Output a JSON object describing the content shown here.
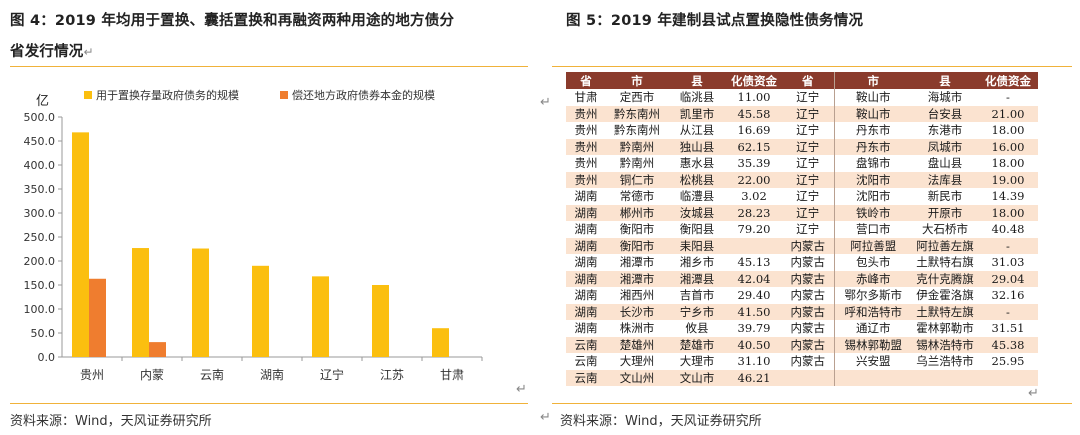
{
  "left": {
    "title_line1": "图 4：2019 年均用于置换、囊括置换和再融资两种用途的地方债分",
    "title_line2": "省发行情况",
    "pilcrow": "↵",
    "source": "资料来源：Wind，天风证券研究所",
    "end_mark": "↵"
  },
  "right": {
    "title": "图 5：2019 年建制县试点置换隐性债务情况",
    "source": "资料来源：Wind，天风证券研究所",
    "table": {
      "headers": [
        "省",
        "市",
        "县",
        "化债资金",
        "省",
        "市",
        "县",
        "化债资金"
      ],
      "rows": [
        [
          "甘肃",
          "定西市",
          "临洮县",
          "11.00",
          "辽宁",
          "鞍山市",
          "海城市",
          "-"
        ],
        [
          "贵州",
          "黔东南州",
          "凯里市",
          "45.58",
          "辽宁",
          "鞍山市",
          "台安县",
          "21.00"
        ],
        [
          "贵州",
          "黔东南州",
          "从江县",
          "16.69",
          "辽宁",
          "丹东市",
          "东港市",
          "18.00"
        ],
        [
          "贵州",
          "黔南州",
          "独山县",
          "62.15",
          "辽宁",
          "丹东市",
          "凤城市",
          "16.00"
        ],
        [
          "贵州",
          "黔南州",
          "惠水县",
          "35.39",
          "辽宁",
          "盘锦市",
          "盘山县",
          "18.00"
        ],
        [
          "贵州",
          "铜仁市",
          "松桃县",
          "22.00",
          "辽宁",
          "沈阳市",
          "法库县",
          "19.00"
        ],
        [
          "湖南",
          "常德市",
          "临澧县",
          "3.02",
          "辽宁",
          "沈阳市",
          "新民市",
          "14.39"
        ],
        [
          "湖南",
          "郴州市",
          "汝城县",
          "28.23",
          "辽宁",
          "铁岭市",
          "开原市",
          "18.00"
        ],
        [
          "湖南",
          "衡阳市",
          "衡阳县",
          "79.20",
          "辽宁",
          "营口市",
          "大石桥市",
          "40.48"
        ],
        [
          "湖南",
          "衡阳市",
          "耒阳县",
          "",
          "内蒙古",
          "阿拉善盟",
          "阿拉善左旗",
          "-"
        ],
        [
          "湖南",
          "湘潭市",
          "湘乡市",
          "45.13",
          "内蒙古",
          "包头市",
          "土默特右旗",
          "31.03"
        ],
        [
          "湖南",
          "湘潭市",
          "湘潭县",
          "42.04",
          "内蒙古",
          "赤峰市",
          "克什克腾旗",
          "29.04"
        ],
        [
          "湖南",
          "湘西州",
          "吉首市",
          "29.40",
          "内蒙古",
          "鄂尔多斯市",
          "伊金霍洛旗",
          "32.16"
        ],
        [
          "湖南",
          "长沙市",
          "宁乡市",
          "41.50",
          "内蒙古",
          "呼和浩特市",
          "土默特左旗",
          "-"
        ],
        [
          "湖南",
          "株洲市",
          "攸县",
          "39.79",
          "内蒙古",
          "通辽市",
          "霍林郭勒市",
          "31.51"
        ],
        [
          "云南",
          "楚雄州",
          "楚雄市",
          "40.50",
          "内蒙古",
          "锡林郭勒盟",
          "锡林浩特市",
          "45.38"
        ],
        [
          "云南",
          "大理州",
          "大理市",
          "31.10",
          "内蒙古",
          "兴安盟",
          "乌兰浩特市",
          "25.95"
        ],
        [
          "云南",
          "文山州",
          "文山市",
          "46.21",
          "",
          "",
          "",
          ""
        ]
      ]
    }
  },
  "chart_data": {
    "type": "bar",
    "unit_label": "亿",
    "categories": [
      "贵州",
      "内蒙",
      "云南",
      "湖南",
      "辽宁",
      "江苏",
      "甘肃"
    ],
    "series": [
      {
        "name": "用于置换存量政府债务的规模",
        "color": "#fbbf0f",
        "values": [
          468,
          227,
          226,
          190,
          168,
          150,
          60
        ]
      },
      {
        "name": "偿还地方政府债券本金的规模",
        "color": "#ef7d2f",
        "values": [
          163,
          31,
          0,
          0,
          0,
          0,
          0
        ]
      }
    ],
    "ylim": [
      0,
      500
    ],
    "yticks": [
      "0.0",
      "50.0",
      "100.0",
      "150.0",
      "200.0",
      "250.0",
      "300.0",
      "350.0",
      "400.0",
      "450.0",
      "500.0"
    ],
    "legend_position": "top",
    "grid": false
  }
}
